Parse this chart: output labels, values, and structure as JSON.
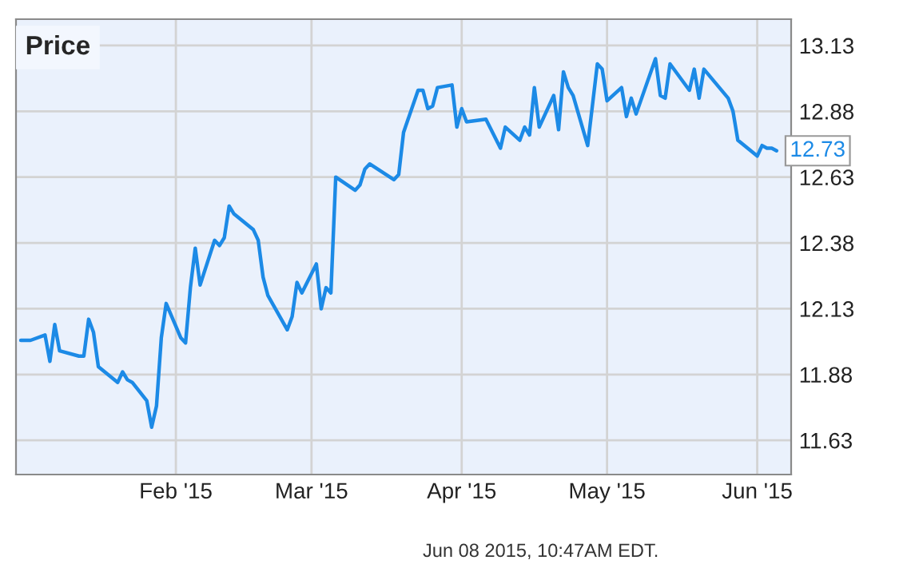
{
  "chart_data": {
    "type": "line",
    "title": "Price",
    "x": [
      "2014-12-31",
      "2015-01-02",
      "2015-01-05",
      "2015-01-06",
      "2015-01-07",
      "2015-01-08",
      "2015-01-12",
      "2015-01-13",
      "2015-01-14",
      "2015-01-15",
      "2015-01-16",
      "2015-01-20",
      "2015-01-21",
      "2015-01-22",
      "2015-01-23",
      "2015-01-26",
      "2015-01-27",
      "2015-01-28",
      "2015-01-29",
      "2015-01-30",
      "2015-02-02",
      "2015-02-03",
      "2015-02-04",
      "2015-02-05",
      "2015-02-06",
      "2015-02-09",
      "2015-02-10",
      "2015-02-11",
      "2015-02-12",
      "2015-02-13",
      "2015-02-17",
      "2015-02-18",
      "2015-02-19",
      "2015-02-20",
      "2015-02-24",
      "2015-02-25",
      "2015-02-26",
      "2015-02-27",
      "2015-03-02",
      "2015-03-03",
      "2015-03-04",
      "2015-03-05",
      "2015-03-06",
      "2015-03-10",
      "2015-03-11",
      "2015-03-12",
      "2015-03-13",
      "2015-03-18",
      "2015-03-19",
      "2015-03-20",
      "2015-03-23",
      "2015-03-24",
      "2015-03-25",
      "2015-03-26",
      "2015-03-27",
      "2015-03-30",
      "2015-03-31",
      "2015-04-01",
      "2015-04-02",
      "2015-04-06",
      "2015-04-09",
      "2015-04-10",
      "2015-04-13",
      "2015-04-14",
      "2015-04-15",
      "2015-04-16",
      "2015-04-17",
      "2015-04-20",
      "2015-04-21",
      "2015-04-22",
      "2015-04-23",
      "2015-04-24",
      "2015-04-27",
      "2015-04-29",
      "2015-04-30",
      "2015-05-01",
      "2015-05-04",
      "2015-05-05",
      "2015-05-06",
      "2015-05-07",
      "2015-05-11",
      "2015-05-12",
      "2015-05-13",
      "2015-05-14",
      "2015-05-18",
      "2015-05-19",
      "2015-05-20",
      "2015-05-21",
      "2015-05-26",
      "2015-05-27",
      "2015-05-28",
      "2015-06-01",
      "2015-06-02",
      "2015-06-03",
      "2015-06-04",
      "2015-06-05"
    ],
    "series": [
      {
        "color": "#1c8ae6",
        "values": [
          12.01,
          12.01,
          12.03,
          11.93,
          12.07,
          11.97,
          11.95,
          11.95,
          12.09,
          12.04,
          11.91,
          11.85,
          11.89,
          11.86,
          11.85,
          11.78,
          11.68,
          11.76,
          12.02,
          12.15,
          12.02,
          12.0,
          12.21,
          12.36,
          12.22,
          12.39,
          12.37,
          12.4,
          12.52,
          12.49,
          12.43,
          12.39,
          12.25,
          12.18,
          12.05,
          12.1,
          12.23,
          12.19,
          12.3,
          12.13,
          12.21,
          12.19,
          12.63,
          12.58,
          12.6,
          12.66,
          12.68,
          12.62,
          12.64,
          12.8,
          12.96,
          12.96,
          12.89,
          12.9,
          12.97,
          12.98,
          12.82,
          12.89,
          12.84,
          12.85,
          12.74,
          12.82,
          12.77,
          12.82,
          12.79,
          12.97,
          12.82,
          12.94,
          12.81,
          13.03,
          12.97,
          12.94,
          12.75,
          13.06,
          13.04,
          12.92,
          12.97,
          12.86,
          12.93,
          12.87,
          13.08,
          12.94,
          12.93,
          13.06,
          12.96,
          13.04,
          12.93,
          13.04,
          12.93,
          12.88,
          12.77,
          12.71,
          12.75,
          12.74,
          12.74,
          12.73
        ]
      }
    ],
    "xlim": [
      "2014-12-30",
      "2015-06-08"
    ],
    "xticks": [
      {
        "value": "2015-02-01",
        "label": "Feb '15"
      },
      {
        "value": "2015-03-01",
        "label": "Mar '15"
      },
      {
        "value": "2015-04-01",
        "label": "Apr '15"
      },
      {
        "value": "2015-05-01",
        "label": "May '15"
      },
      {
        "value": "2015-06-01",
        "label": "Jun '15"
      }
    ],
    "ylim": [
      11.5,
      13.23
    ],
    "yticks": [
      11.63,
      11.88,
      12.13,
      12.38,
      12.63,
      12.88,
      13.13
    ],
    "grid": true,
    "legend": false,
    "marker": "none",
    "line_style": "solid",
    "annotations": [
      {
        "text": "12.73",
        "x": "2015-06-05",
        "y": 12.73
      },
      "Jun 08 2015, 10:47AM EDT."
    ]
  }
}
